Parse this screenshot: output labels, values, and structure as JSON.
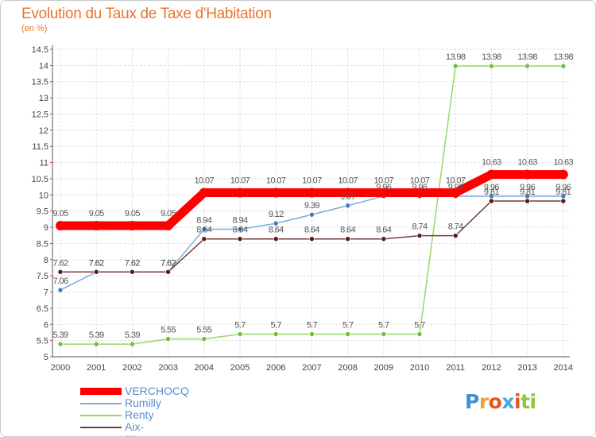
{
  "chart_data": {
    "type": "line",
    "title": "Evolution du Taux de Taxe d'Habitation",
    "unit_label": "(en %)",
    "xlabel": "",
    "ylabel": "",
    "ylim": [
      5,
      14.5
    ],
    "ytick_step": 0.5,
    "yticks": [
      "5",
      "5.5",
      "6",
      "6.5",
      "7",
      "7.5",
      "8",
      "8.5",
      "9",
      "9.5",
      "10",
      "10.5",
      "11",
      "11.5",
      "12",
      "12.5",
      "13",
      "13.5",
      "14",
      "14.5"
    ],
    "categories": [
      "2000",
      "2001",
      "2002",
      "2003",
      "2004",
      "2005",
      "2006",
      "2007",
      "2008",
      "2009",
      "2010",
      "2011",
      "2012",
      "2013",
      "2014"
    ],
    "grid": true,
    "legend_position": "bottom-left",
    "series": [
      {
        "name": "VERCHOCQ",
        "color": "#ff0000",
        "marker_color": "#ff0000",
        "label_color": "#555555",
        "emphasis": "thick",
        "values": [
          9.05,
          9.05,
          9.05,
          9.05,
          10.07,
          10.07,
          10.07,
          10.07,
          10.07,
          10.07,
          10.07,
          10.07,
          10.63,
          10.63,
          10.63
        ],
        "labels": [
          "9.05",
          "9.05",
          "9.05",
          "9.05",
          "10.07",
          "10.07",
          "10.07",
          "10.07",
          "10.07",
          "10.07",
          "10.07",
          "10.07",
          "10.63",
          "10.63",
          "10.63"
        ]
      },
      {
        "name": "Rumilly",
        "color": "#7aaee0",
        "marker_color": "#3a7dc0",
        "label_color": "#555555",
        "emphasis": "normal",
        "values": [
          7.06,
          7.62,
          7.62,
          7.62,
          8.94,
          8.94,
          9.12,
          9.39,
          9.67,
          9.96,
          9.96,
          9.96,
          9.96,
          9.96,
          9.96
        ],
        "labels": [
          "7.06",
          "7.62",
          "7.62",
          "7.62",
          "8.94",
          "8.94",
          "9.12",
          "9.39",
          "9.67",
          "9.96",
          "9.96",
          "9.96",
          "9.96",
          "9.96",
          "9.96"
        ]
      },
      {
        "name": "Renty",
        "color": "#98d868",
        "marker_color": "#6cc040",
        "label_color": "#555555",
        "emphasis": "normal",
        "values": [
          5.39,
          5.39,
          5.39,
          5.55,
          5.55,
          5.7,
          5.7,
          5.7,
          5.7,
          5.7,
          5.7,
          13.98,
          13.98,
          13.98,
          13.98
        ],
        "labels": [
          "5.39",
          "5.39",
          "5.39",
          "5.55",
          "5.55",
          "5.7",
          "5.7",
          "5.7",
          "5.7",
          "5.7",
          "5.7",
          "13.98",
          "13.98",
          "13.98",
          "13.98"
        ]
      },
      {
        "name": "Aix-en-Ergny",
        "color": "#7a3a3a",
        "marker_color": "#5a1a1a",
        "label_color": "#555555",
        "emphasis": "normal",
        "values": [
          7.62,
          7.62,
          7.62,
          7.62,
          8.64,
          8.64,
          8.64,
          8.64,
          8.64,
          8.64,
          8.74,
          8.74,
          9.81,
          9.81,
          9.81
        ],
        "labels": [
          "7.62",
          "7.62",
          "7.62",
          "7.62",
          "8.64",
          "8.64",
          "8.64",
          "8.64",
          "8.64",
          "8.64",
          "8.74",
          "8.74",
          "9.81",
          "9.81",
          "9.81"
        ]
      }
    ]
  },
  "legend": {
    "items": [
      {
        "label": "VERCHOCQ",
        "color": "#ff0000"
      },
      {
        "label": "Rumilly",
        "color": "#7aaee0"
      },
      {
        "label": "Renty",
        "color": "#98d868"
      },
      {
        "label": "Aix-en-Ergny",
        "color": "#7a3a3a"
      }
    ]
  },
  "brand": {
    "logo_letters": [
      "P",
      "r",
      "o",
      "x",
      "i",
      "t",
      "i"
    ]
  }
}
